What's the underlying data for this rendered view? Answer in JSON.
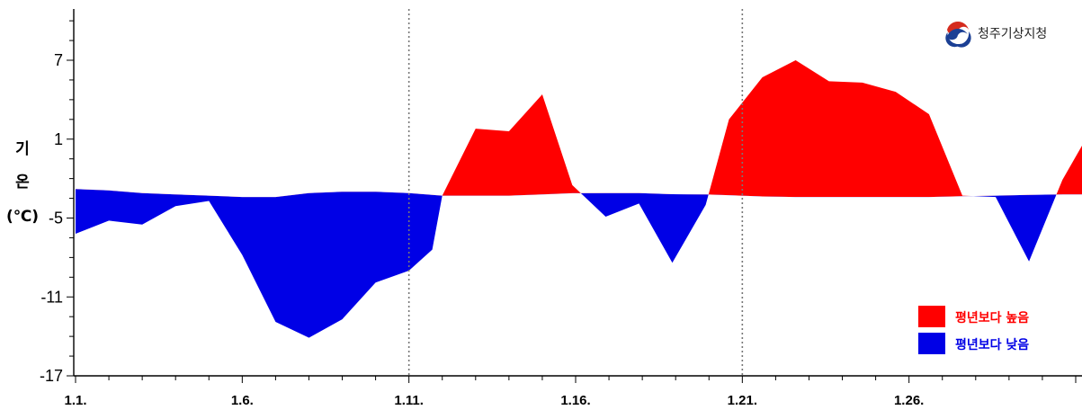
{
  "chart_data": {
    "type": "area",
    "title": "",
    "xlabel": "",
    "ylabel_chars": [
      "기",
      "온",
      "(℃)"
    ],
    "x_ticks": [
      "1.1.",
      "1.6.",
      "1.11.",
      "1.16.",
      "1.21.",
      "1.26."
    ],
    "y_ticks": [
      "7",
      "1",
      "-5",
      "-11",
      "-17"
    ],
    "ylim": [
      -17,
      10
    ],
    "xlim": [
      1,
      31
    ],
    "grid": "vertical dotted at 1.11. and 1.21.",
    "legend_position": "bottom-right",
    "normal": {
      "x": [
        1,
        2,
        3,
        4,
        5,
        6,
        7,
        8,
        9,
        10,
        11,
        12,
        13,
        14,
        15,
        16,
        17,
        18,
        19,
        20,
        21,
        22,
        23,
        24,
        25,
        26,
        27,
        28,
        29,
        30,
        31
      ],
      "y": [
        -2.8,
        -2.9,
        -3.1,
        -3.2,
        -3.3,
        -3.4,
        -3.4,
        -3.1,
        -3.0,
        -3.0,
        -3.1,
        -3.3,
        -3.3,
        -3.3,
        -3.2,
        -3.1,
        -3.1,
        -3.1,
        -3.2,
        -3.2,
        -3.3,
        -3.4,
        -3.4,
        -3.4,
        -3.4,
        -3.4,
        -3.4,
        -3.3,
        -3.3,
        -3.2,
        -3.2
      ]
    },
    "actual": {
      "x": [
        1,
        2,
        3,
        4,
        5,
        6,
        7,
        8,
        9,
        10,
        11,
        11.7,
        12,
        13,
        14,
        15,
        15.9,
        16.9,
        17.9,
        18.9,
        19.9,
        20.6,
        21.6,
        22.6,
        23.6,
        24.6,
        25.6,
        26.6,
        27.6,
        28.6,
        29.6,
        30.6,
        31.3
      ],
      "y": [
        -6.2,
        -5.2,
        -5.5,
        -4.1,
        -3.7,
        -7.8,
        -12.9,
        -14.1,
        -12.7,
        -9.9,
        -9.0,
        -7.4,
        -3.3,
        1.8,
        1.6,
        4.4,
        -2.5,
        -4.9,
        -3.9,
        -8.4,
        -4.0,
        2.5,
        5.7,
        7.0,
        5.4,
        5.3,
        4.6,
        2.9,
        -3.3,
        -3.4,
        -8.3,
        -2.1,
        1.0
      ]
    },
    "legend": [
      {
        "label": "평년보다 높음",
        "color": "#ff0000"
      },
      {
        "label": "평년보다 낮음",
        "color": "#0000e6"
      }
    ],
    "colors": {
      "above": "#ff0000",
      "below": "#0000e6",
      "frame": "#000000",
      "grid": "#777777"
    }
  },
  "brand": {
    "name": "청주기상지청",
    "icon": "government-emblem-icon"
  }
}
